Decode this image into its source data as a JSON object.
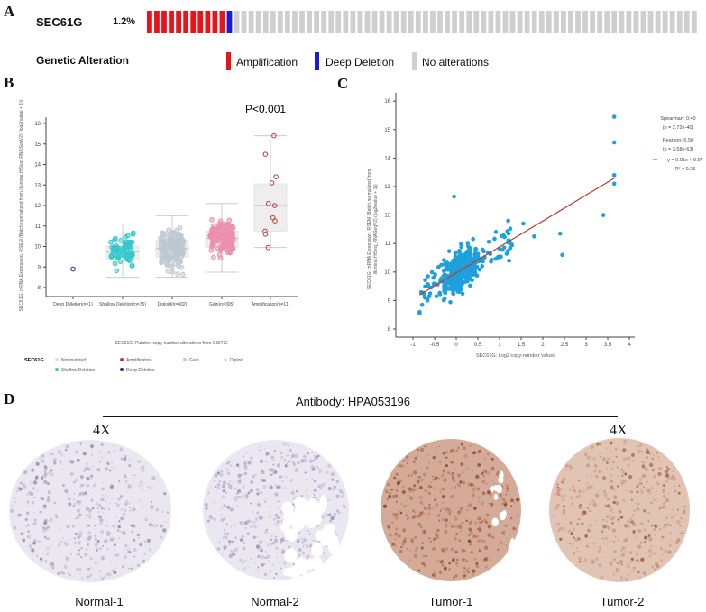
{
  "panels": {
    "a": "A",
    "b": "B",
    "c": "C",
    "d": "D"
  },
  "oncoprint": {
    "gene": "SEC61G",
    "percent": "1.2%",
    "counts": {
      "amplification": 11,
      "deep_deletion": 1,
      "no_alterations": 64
    },
    "legend_title": "Genetic Alteration",
    "legend": [
      {
        "label": "Amplification",
        "color": "#e8141b"
      },
      {
        "label": "Deep Deletion",
        "color": "#1a1adb"
      },
      {
        "label": "No alterations",
        "color": "#cfcfcf"
      }
    ]
  },
  "chart_data": [
    {
      "type": "box",
      "title": "P<0.001",
      "ylabel": "SEC61G: mRNA Expression, RSEM (Batch normalized from Illumina HiSeq_RNASeqV2) (log2(value + 1))",
      "xlabel": "SEC61G: Putative copy-number alterations from GISTIC",
      "ylim": [
        7.7,
        16.3
      ],
      "yticks": [
        8,
        9,
        10,
        11,
        12,
        13,
        14,
        15,
        16
      ],
      "categories": [
        {
          "label": "Deep Deletion(n=1)",
          "n": 1,
          "color": "#2a2aa0",
          "points": [
            8.9
          ]
        },
        {
          "label": "Shallow Deletion(n=75)",
          "n": 75,
          "color": "#33c8cc",
          "min": 8.5,
          "q1": 9.4,
          "median": 9.75,
          "q3": 10.0,
          "max": 11.1
        },
        {
          "label": "Diploid(n=602)",
          "n": 602,
          "color": "#bcc8d0",
          "min": 8.5,
          "q1": 9.5,
          "median": 9.9,
          "q3": 10.3,
          "max": 11.5
        },
        {
          "label": "Gain(n=305)",
          "n": 305,
          "color": "#ec8fae",
          "min": 8.75,
          "q1": 9.95,
          "median": 10.4,
          "q3": 10.75,
          "max": 12.1
        },
        {
          "label": "Amplification(n=11)",
          "n": 11,
          "color": "#c0393b",
          "min": 9.95,
          "q1": 10.75,
          "median": 12.0,
          "q3": 13.05,
          "max": 15.4,
          "points": [
            15.4,
            14.5,
            13.4,
            13.1,
            12.1,
            12.0,
            11.4,
            11.25,
            10.75,
            10.6,
            9.95
          ]
        }
      ],
      "legend_title": "SEC61G",
      "legend": [
        {
          "label": "Not mutated",
          "color": "#dddddd"
        },
        {
          "label": "Amplification",
          "color": "#c0393b"
        },
        {
          "label": "Gain",
          "color": "#f2b6c6"
        },
        {
          "label": "Diploid",
          "color": "#e0e0e0"
        },
        {
          "label": "Shallow Deletion",
          "color": "#33c8cc"
        },
        {
          "label": "Deep Deletion",
          "color": "#2a2aa0"
        }
      ]
    },
    {
      "type": "scatter",
      "xlabel": "SEC61G: Log2 copy-number values",
      "ylabel": [
        "SEC61G: mRNA Expression, RSEM (Batch normalized from",
        "Illumina HiSeq_RNASeqV2) (log2(value + 1))"
      ],
      "xlim": [
        -1.4,
        4.2
      ],
      "ylim": [
        7.7,
        16.3
      ],
      "xticks": [
        "-1",
        "-0.5",
        "0",
        "0.5",
        "1",
        "1.5",
        "2",
        "2.5",
        "3",
        "3.5",
        "4"
      ],
      "yticks": [
        8,
        9,
        10,
        11,
        12,
        13,
        14,
        15,
        16
      ],
      "color": "#1ea0dc",
      "highlighted_points": [
        [
          3.65,
          15.45
        ],
        [
          3.65,
          14.55
        ],
        [
          3.65,
          13.4
        ],
        [
          3.65,
          13.1
        ],
        [
          3.4,
          12.0
        ],
        [
          2.4,
          11.35
        ],
        [
          2.45,
          10.6
        ],
        [
          1.8,
          11.25
        ],
        [
          1.55,
          11.7
        ],
        [
          1.2,
          11.8
        ],
        [
          -0.05,
          12.65
        ]
      ],
      "regression": {
        "slope": 0.91,
        "intercept": 9.97,
        "x_range": [
          -0.85,
          3.65
        ],
        "color": "#c0392b"
      },
      "stats": {
        "spearman": "Spearman: 0.40",
        "spearman_p": "(p = 2.72e-40)",
        "pearson": "Pearson: 0.50",
        "pearson_p": "(p = 3.58e-63)",
        "equation": "y = 0.91x + 9.97",
        "r2": "R² = 0.25"
      }
    }
  ],
  "ihc": {
    "title": "Antibody: HPA053196",
    "magnification_left": "4X",
    "magnification_right": "4X",
    "samples": [
      {
        "label": "Normal-1",
        "stain": "negative"
      },
      {
        "label": "Normal-2",
        "stain": "negative"
      },
      {
        "label": "Tumor-1",
        "stain": "strong"
      },
      {
        "label": "Tumor-2",
        "stain": "moderate"
      }
    ]
  }
}
